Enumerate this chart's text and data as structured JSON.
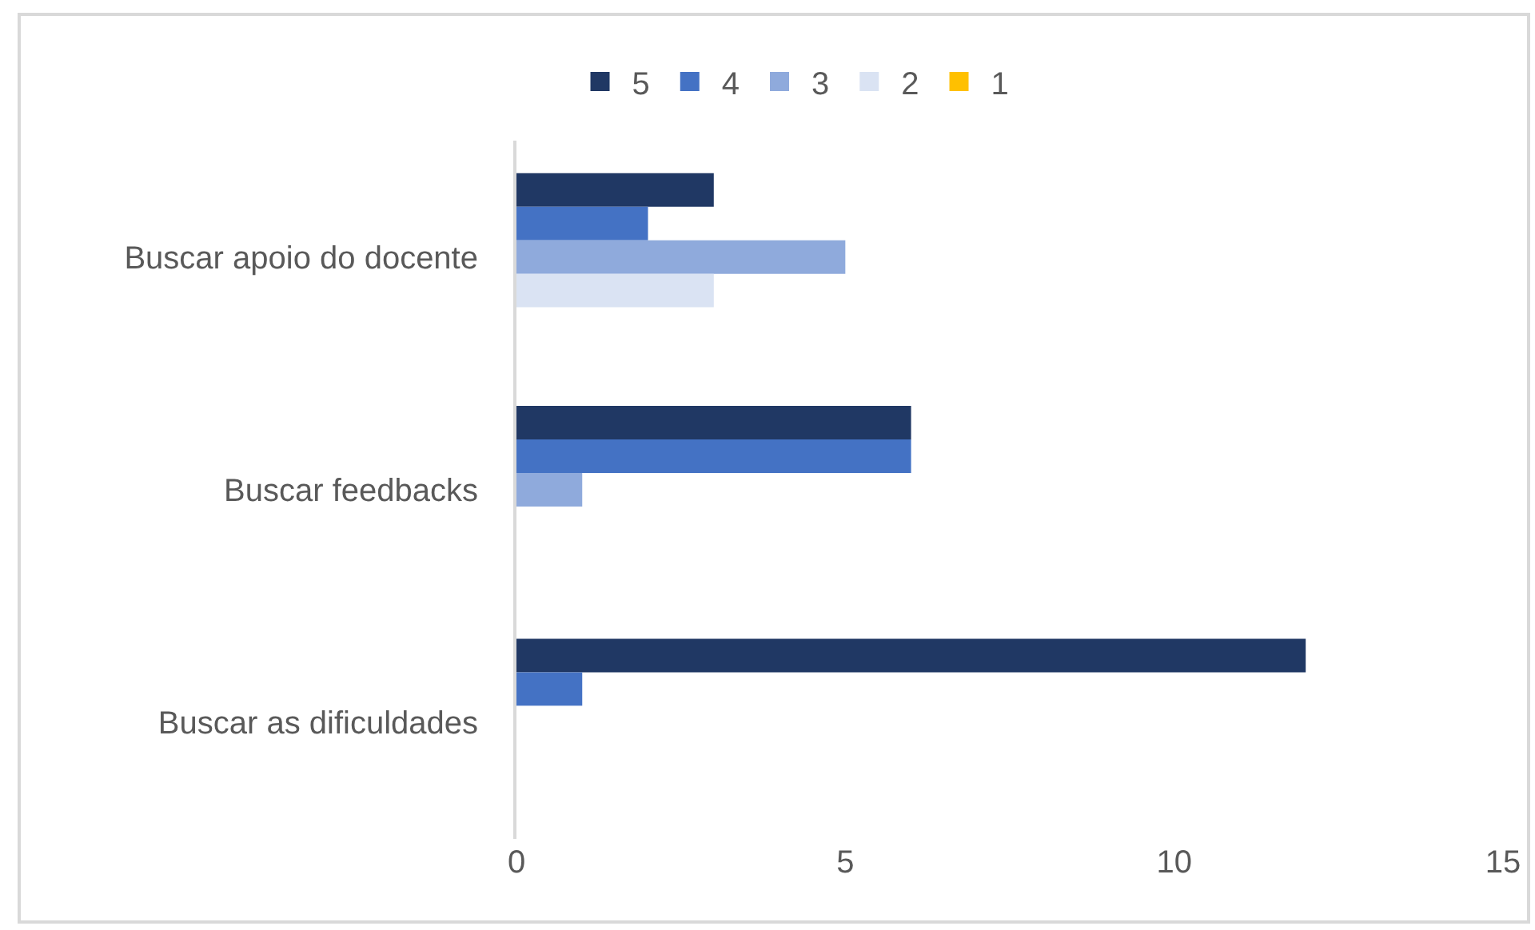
{
  "chart_data": {
    "type": "bar",
    "orientation": "horizontal",
    "categories": [
      "Buscar apoio do docente",
      "Buscar feedbacks",
      "Buscar as dificuldades"
    ],
    "series": [
      {
        "name": "5",
        "color": "#203864",
        "values": [
          3,
          6,
          12
        ]
      },
      {
        "name": "4",
        "color": "#4472c4",
        "values": [
          2,
          6,
          1
        ]
      },
      {
        "name": "3",
        "color": "#8faadc",
        "values": [
          5,
          1,
          0
        ]
      },
      {
        "name": "2",
        "color": "#dae3f3",
        "values": [
          3,
          0,
          0
        ]
      },
      {
        "name": "1",
        "color": "#ffc000",
        "values": [
          0,
          0,
          0
        ]
      }
    ],
    "xlim": [
      0,
      15
    ],
    "xticks": [
      0,
      5,
      10,
      15
    ],
    "legend": "top"
  }
}
